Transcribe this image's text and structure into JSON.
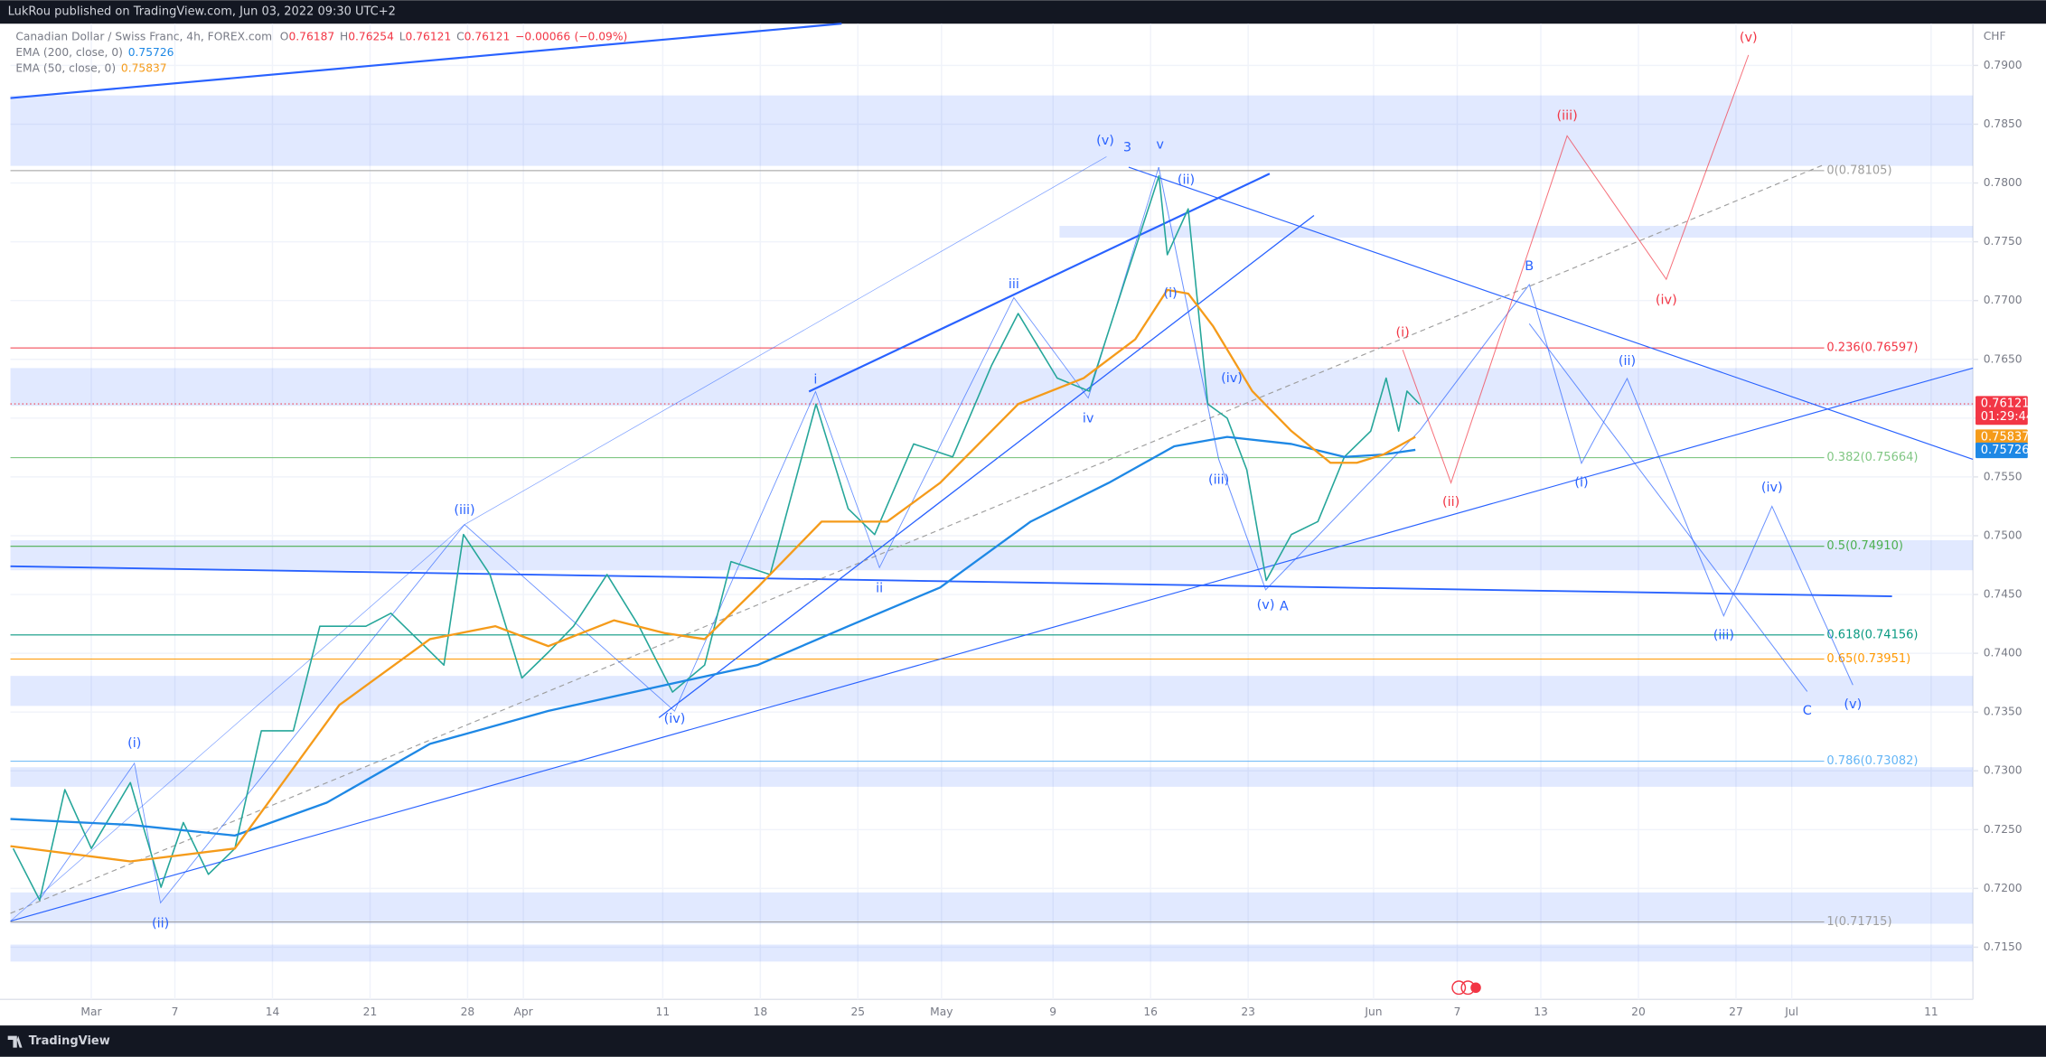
{
  "header": {
    "publisher": "LukRou published on TradingView.com, Jun 03, 2022 09:30 UTC+2"
  },
  "footer": {
    "brand": "TradingView"
  },
  "chart_data": {
    "type": "line",
    "title": "Canadian Dollar / Swiss Franc, 4h, FOREX.com",
    "ohlc": [
      {
        "label": "O",
        "value": 0.76187
      },
      {
        "label": "H",
        "value": 0.76254
      },
      {
        "label": "L",
        "value": 0.76121
      },
      {
        "label": "C",
        "value": 0.76121
      }
    ],
    "change": "−0.00066",
    "change_pct": "(−0.09%)",
    "countdown": "01:29:44",
    "y_axis_label": "CHF",
    "grid": true,
    "xlim": [
      -5.8,
      135
    ],
    "ylim": [
      0.71056,
      0.79355
    ],
    "xticks": [
      {
        "value": 0,
        "label": "Mar"
      },
      {
        "value": 6,
        "label": "7"
      },
      {
        "value": 13,
        "label": "14"
      },
      {
        "value": 20,
        "label": "21"
      },
      {
        "value": 27,
        "label": "28"
      },
      {
        "value": 31,
        "label": "Apr"
      },
      {
        "value": 41,
        "label": "11"
      },
      {
        "value": 48,
        "label": "18"
      },
      {
        "value": 55,
        "label": "25"
      },
      {
        "value": 61,
        "label": "May"
      },
      {
        "value": 69,
        "label": "9"
      },
      {
        "value": 76,
        "label": "16"
      },
      {
        "value": 83,
        "label": "23"
      },
      {
        "value": 92,
        "label": "Jun"
      },
      {
        "value": 98,
        "label": "7"
      },
      {
        "value": 104,
        "label": "13"
      },
      {
        "value": 111,
        "label": "20"
      },
      {
        "value": 118,
        "label": "27"
      },
      {
        "value": 122,
        "label": "Jul"
      },
      {
        "value": 132,
        "label": "11"
      }
    ],
    "yticks": [
      {
        "value": 0.715,
        "label": "0.7150"
      },
      {
        "value": 0.72,
        "label": "0.7200"
      },
      {
        "value": 0.725,
        "label": "0.7250"
      },
      {
        "value": 0.73,
        "label": "0.7300"
      },
      {
        "value": 0.735,
        "label": "0.7350"
      },
      {
        "value": 0.74,
        "label": "0.7400"
      },
      {
        "value": 0.745,
        "label": "0.7450"
      },
      {
        "value": 0.75,
        "label": "0.7500"
      },
      {
        "value": 0.755,
        "label": "0.7550"
      },
      {
        "value": 0.76,
        "label": "0.7600"
      },
      {
        "value": 0.765,
        "label": "0.7650"
      },
      {
        "value": 0.77,
        "label": "0.7700"
      },
      {
        "value": 0.775,
        "label": "0.7750"
      },
      {
        "value": 0.78,
        "label": "0.7800"
      },
      {
        "value": 0.785,
        "label": "0.7850"
      },
      {
        "value": 0.79,
        "label": "0.7900"
      }
    ],
    "series": [
      {
        "name": "Canadian Dollar / Swiss Franc, 4h, FOREX.com",
        "color": "#26a69a",
        "x": [
          -5.6,
          -3.7,
          -1.9,
          0,
          2.8,
          5.0,
          6.6,
          8.4,
          10.3,
          12.2,
          14.5,
          16.4,
          19.7,
          21.5,
          23.4,
          25.3,
          26.7,
          28.6,
          30.9,
          32.8,
          34.6,
          37.0,
          39.3,
          41.7,
          44.0,
          45.9,
          48.7,
          52.0,
          54.3,
          56.2,
          59.0,
          61.8,
          64.6,
          66.5,
          69.3,
          71.6,
          74.0,
          76.6,
          77.2,
          78.7,
          80.1,
          81.5,
          82.9,
          84.3,
          86.1,
          88.0,
          89.9,
          91.8,
          92.9,
          93.8,
          94.4,
          95.3
        ],
        "values": [
          0.7234,
          0.719,
          0.7284,
          0.7234,
          0.729,
          0.7201,
          0.7256,
          0.7212,
          0.7234,
          0.7334,
          0.7334,
          0.7423,
          0.7423,
          0.7434,
          0.7412,
          0.739,
          0.7501,
          0.7467,
          0.7379,
          0.7401,
          0.7423,
          0.7467,
          0.7423,
          0.7367,
          0.739,
          0.7478,
          0.7467,
          0.7612,
          0.7523,
          0.7501,
          0.7578,
          0.7567,
          0.7645,
          0.7689,
          0.7634,
          0.7623,
          0.7711,
          0.7806,
          0.7739,
          0.7778,
          0.7612,
          0.76,
          0.7556,
          0.7462,
          0.7501,
          0.7512,
          0.7567,
          0.7589,
          0.7634,
          0.7589,
          0.7623,
          0.7612
        ]
      },
      {
        "name": "EMA (200, close, 0)",
        "color": "#1e88e5",
        "last_value": 0.75726,
        "x": [
          -5.8,
          2.8,
          10.3,
          16.9,
          24.3,
          32.8,
          41.2,
          47.8,
          54.3,
          60.9,
          67.4,
          73.0,
          77.7,
          81.5,
          86.1,
          89.9,
          92.7,
          95.0
        ],
        "values": [
          0.7259,
          0.7254,
          0.7245,
          0.7273,
          0.7323,
          0.7351,
          0.7373,
          0.739,
          0.7423,
          0.7456,
          0.7512,
          0.7545,
          0.7576,
          0.7584,
          0.7578,
          0.7567,
          0.7569,
          0.7573
        ]
      },
      {
        "name": "EMA (50, close, 0)",
        "color": "#f59b1a",
        "last_value": 0.75837,
        "x": [
          -5.8,
          2.8,
          10.3,
          17.8,
          24.3,
          29.0,
          32.8,
          37.5,
          41.2,
          44.0,
          47.8,
          52.4,
          57.1,
          60.9,
          66.5,
          71.2,
          74.9,
          77.2,
          78.7,
          80.5,
          83.3,
          86.1,
          88.9,
          90.8,
          92.7,
          95.0
        ],
        "values": [
          0.7236,
          0.7223,
          0.7234,
          0.7356,
          0.7412,
          0.7423,
          0.7406,
          0.7428,
          0.7417,
          0.7412,
          0.7456,
          0.7512,
          0.7512,
          0.7545,
          0.7612,
          0.7634,
          0.7667,
          0.7709,
          0.7706,
          0.7678,
          0.7623,
          0.7589,
          0.7562,
          0.7562,
          0.7569,
          0.7584
        ]
      }
    ],
    "fib_levels": [
      {
        "value": 0.78105,
        "label": "0(0.78105)",
        "color": "#9e9e9e"
      },
      {
        "value": 0.76597,
        "label": "0.236(0.76597)",
        "color": "#f23645"
      },
      {
        "value": 0.75664,
        "label": "0.382(0.75664)",
        "color": "#81c784"
      },
      {
        "value": 0.7491,
        "label": "0.5(0.74910)",
        "color": "#4caf50"
      },
      {
        "value": 0.74156,
        "label": "0.618(0.74156)",
        "color": "#089981"
      },
      {
        "value": 0.73951,
        "label": "0.65(0.73951)",
        "color": "#ff9800"
      },
      {
        "value": 0.73082,
        "label": "0.786(0.73082)",
        "color": "#64b5f6"
      },
      {
        "value": 0.71715,
        "label": "1(0.71715)",
        "color": "#9e9e9e"
      }
    ],
    "annotations": [
      {
        "text": "(i)",
        "color": "#2962ff"
      },
      {
        "text": "(ii)",
        "color": "#2962ff"
      },
      {
        "text": "(iii)",
        "color": "#2962ff"
      },
      {
        "text": "(iv)",
        "color": "#2962ff"
      },
      {
        "text": "i",
        "color": "#2962ff"
      },
      {
        "text": "ii",
        "color": "#2962ff"
      },
      {
        "text": "iii",
        "color": "#2962ff"
      },
      {
        "text": "iv",
        "color": "#2962ff"
      },
      {
        "text": "(v)",
        "color": "#2962ff"
      },
      {
        "text": "3",
        "color": "#2962ff"
      },
      {
        "text": "v",
        "color": "#2962ff"
      },
      {
        "text": "(ii)",
        "color": "#2962ff"
      },
      {
        "text": "(i)",
        "color": "#2962ff"
      },
      {
        "text": "(iv)",
        "color": "#2962ff"
      },
      {
        "text": "(iii)",
        "color": "#2962ff"
      },
      {
        "text": "(v)",
        "color": "#2962ff"
      },
      {
        "text": "A",
        "color": "#2962ff"
      },
      {
        "text": "B",
        "color": "#2962ff"
      },
      {
        "text": "(i)",
        "color": "#2962ff"
      },
      {
        "text": "(ii)",
        "color": "#2962ff"
      },
      {
        "text": "(iii)",
        "color": "#2962ff"
      },
      {
        "text": "(iv)",
        "color": "#2962ff"
      },
      {
        "text": "C",
        "color": "#2962ff"
      },
      {
        "text": "(v)",
        "color": "#2962ff"
      },
      {
        "text": "(i)",
        "color": "#f23645"
      },
      {
        "text": "(ii)",
        "color": "#f23645"
      },
      {
        "text": "(iii)",
        "color": "#f23645"
      },
      {
        "text": "(iv)",
        "color": "#f23645"
      },
      {
        "text": "(v)",
        "color": "#f23645"
      }
    ]
  }
}
